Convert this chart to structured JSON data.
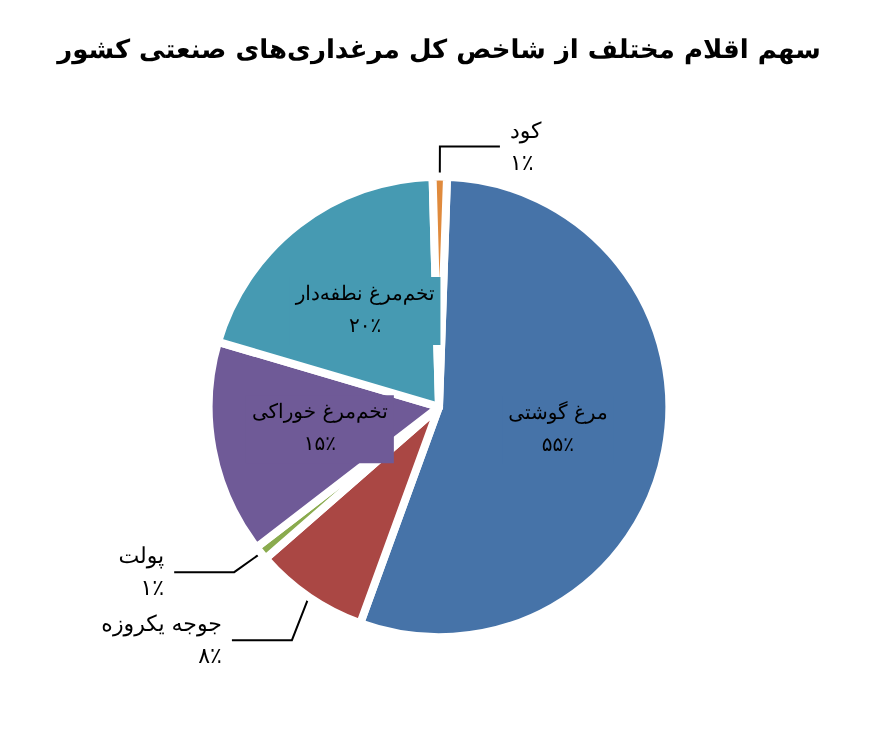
{
  "chart_data": {
    "type": "pie",
    "title": "سهم اقلام مختلف از شاخص کل مرغداری‌های صنعتی کشور",
    "categories": [
      "مرغ گوشتی",
      "جوجه یکروزه",
      "پولت",
      "تخم‌مرغ خوراکی",
      "تخم‌مرغ نطفه‌دار",
      "کود"
    ],
    "values": [
      55,
      8,
      1,
      15,
      20,
      1
    ],
    "colors": [
      "#4673a8",
      "#aa4744",
      "#8aab4e",
      "#6f5a97",
      "#469ab2",
      "#e08a3c"
    ],
    "value_labels": [
      "۵۵٪",
      "۸٪",
      "۱٪",
      "۱۵٪",
      "۲۰٪",
      "۱٪"
    ],
    "legend": false
  }
}
